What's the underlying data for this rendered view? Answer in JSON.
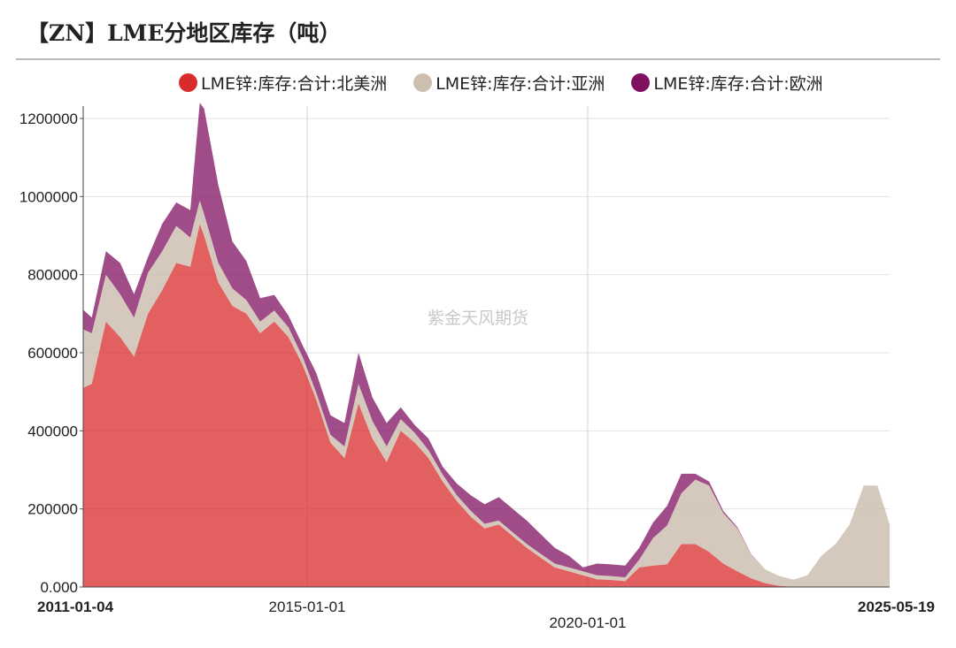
{
  "title": "【ZN】LME分地区库存（吨）",
  "watermark": "紫金天风期货",
  "colors": {
    "north_america": "#d92b2b",
    "asia": "#cdbfb0",
    "europe": "#7f1060"
  },
  "chart_data": {
    "type": "area",
    "stacked": true,
    "title": "【ZN】LME分地区库存（吨）",
    "xlabel": "",
    "ylabel": "",
    "ylim": [
      0,
      1200000
    ],
    "y_ticks": [
      "0.000",
      "200000",
      "400000",
      "600000",
      "800000",
      "1000000",
      "1200000"
    ],
    "x_range": [
      "2011-01-04",
      "2025-05-19"
    ],
    "x_ticks": [
      "2011-01-04",
      "2015-01-01",
      "2020-01-01",
      "2025-05-19"
    ],
    "grid": true,
    "legend_position": "top",
    "x": [
      "2011-01-04",
      "2011-03-01",
      "2011-06-01",
      "2011-09-01",
      "2011-12-01",
      "2012-03-01",
      "2012-06-01",
      "2012-09-01",
      "2012-12-01",
      "2013-02-01",
      "2013-03-01",
      "2013-06-01",
      "2013-09-01",
      "2013-12-01",
      "2014-03-01",
      "2014-06-01",
      "2014-09-01",
      "2014-12-01",
      "2015-03-01",
      "2015-06-01",
      "2015-09-01",
      "2015-12-01",
      "2016-03-01",
      "2016-06-01",
      "2016-09-01",
      "2016-12-01",
      "2017-03-01",
      "2017-06-01",
      "2017-09-01",
      "2017-12-01",
      "2018-03-01",
      "2018-06-01",
      "2018-09-01",
      "2018-12-01",
      "2019-03-01",
      "2019-06-01",
      "2019-09-01",
      "2019-12-01",
      "2020-03-01",
      "2020-06-01",
      "2020-09-01",
      "2020-12-01",
      "2021-03-01",
      "2021-06-01",
      "2021-09-01",
      "2021-12-01",
      "2022-03-01",
      "2022-06-01",
      "2022-09-01",
      "2022-12-01",
      "2023-03-01",
      "2023-06-01",
      "2023-09-01",
      "2023-12-01",
      "2024-03-01",
      "2024-06-01",
      "2024-09-01",
      "2024-12-01",
      "2025-03-01",
      "2025-05-19"
    ],
    "series": [
      {
        "name": "LME锌:库存:合计:北美洲",
        "color": "#d92b2b",
        "values": [
          510000,
          520000,
          680000,
          640000,
          590000,
          700000,
          760000,
          830000,
          820000,
          930000,
          900000,
          780000,
          720000,
          700000,
          650000,
          680000,
          640000,
          570000,
          480000,
          370000,
          330000,
          470000,
          380000,
          320000,
          400000,
          370000,
          330000,
          270000,
          220000,
          180000,
          150000,
          160000,
          130000,
          100000,
          75000,
          50000,
          40000,
          30000,
          20000,
          18000,
          15000,
          50000,
          55000,
          58000,
          110000,
          110000,
          90000,
          60000,
          40000,
          22000,
          10000,
          3000,
          1000,
          0,
          0,
          0,
          0,
          0,
          0,
          0
        ]
      },
      {
        "name": "LME锌:库存:合计:亚洲",
        "color": "#cdbfb0",
        "values": [
          150000,
          130000,
          120000,
          110000,
          100000,
          105000,
          100000,
          95000,
          75000,
          60000,
          55000,
          50000,
          45000,
          35000,
          30000,
          28000,
          25000,
          20000,
          18000,
          20000,
          30000,
          50000,
          45000,
          40000,
          30000,
          25000,
          20000,
          18000,
          15000,
          15000,
          12000,
          10000,
          10000,
          10000,
          10000,
          10000,
          10000,
          10000,
          10000,
          10000,
          10000,
          20000,
          70000,
          100000,
          130000,
          165000,
          170000,
          130000,
          110000,
          60000,
          35000,
          25000,
          18000,
          30000,
          80000,
          110000,
          160000,
          260000,
          260000,
          160000
        ]
      },
      {
        "name": "LME锌:库存:合计:欧洲",
        "color": "#7f1060",
        "values": [
          50000,
          40000,
          60000,
          80000,
          60000,
          40000,
          70000,
          60000,
          70000,
          250000,
          270000,
          200000,
          120000,
          100000,
          60000,
          40000,
          30000,
          30000,
          50000,
          50000,
          60000,
          80000,
          60000,
          60000,
          30000,
          20000,
          30000,
          20000,
          30000,
          40000,
          50000,
          60000,
          60000,
          60000,
          50000,
          40000,
          30000,
          10000,
          30000,
          30000,
          30000,
          30000,
          40000,
          50000,
          50000,
          15000,
          10000,
          5000,
          3000,
          1000,
          0,
          0,
          0,
          0,
          0,
          0,
          0,
          0,
          0,
          0
        ]
      }
    ]
  }
}
